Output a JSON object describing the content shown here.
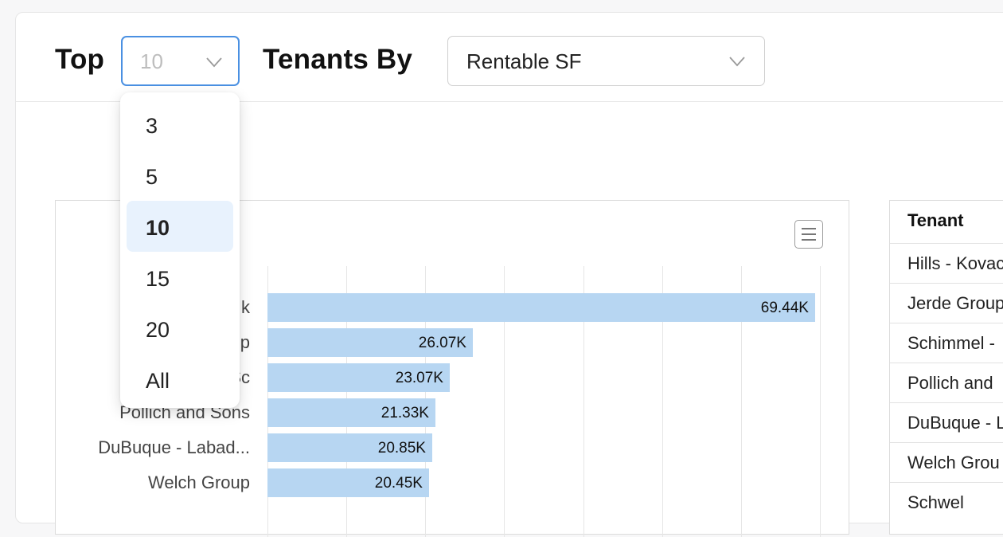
{
  "header": {
    "title_prefix": "Top",
    "top_select_value": "10",
    "title_middle": "Tenants By",
    "metric_select_value": "Rentable SF"
  },
  "dropdown": {
    "options": [
      "3",
      "5",
      "10",
      "15",
      "20",
      "All"
    ],
    "selected": "10"
  },
  "chart_data": {
    "type": "bar",
    "orientation": "horizontal",
    "categories": [
      "Hills - Kovack",
      "Jerde Group",
      "Schimmel - ...",
      "Pollich and Sons",
      "DuBuque - Labad...",
      "Welch Group"
    ],
    "visible_category_labels": [
      "k",
      "p",
      "Sc",
      "Pollich and Sons",
      "DuBuque - Labad...",
      "Welch Group"
    ],
    "values": [
      69440,
      26070,
      23070,
      21330,
      20850,
      20450
    ],
    "value_labels": [
      "69.44K",
      "26.07K",
      "23.07K",
      "21.33K",
      "20.85K",
      "20.45K"
    ],
    "xlim": [
      0,
      70000
    ],
    "grid": true,
    "color": "#b7d6f2"
  },
  "chart_menu_icon": "hamburger-menu-icon",
  "table": {
    "header": "Tenant",
    "rows": [
      "Hills - Kovac",
      "Jerde Group",
      "Schimmel -",
      "Pollich and",
      "DuBuque - L",
      "Welch Grou",
      "Schwel"
    ]
  },
  "colors": {
    "accent": "#4a90e2",
    "selected_option_bg": "#e8f2fd",
    "bar": "#b7d6f2"
  }
}
